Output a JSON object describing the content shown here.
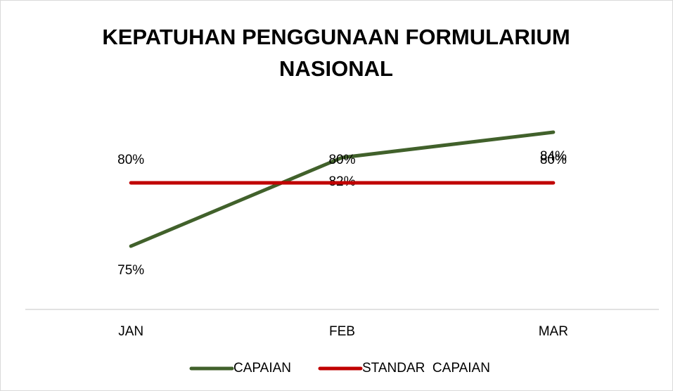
{
  "chart_data": {
    "type": "line",
    "title": "KEPATUHAN PENGGUNAAN FORMULARIUM NASIONAL",
    "categories": [
      "JAN",
      "FEB",
      "MAR"
    ],
    "ylim": [
      70,
      90
    ],
    "series": [
      {
        "name": "CAPAIAN",
        "color": "#41612b",
        "values": [
          75,
          82,
          84
        ],
        "value_labels": [
          "75%",
          "82%",
          "84%"
        ]
      },
      {
        "name": "STANDAR  CAPAIAN",
        "color": "#c00000",
        "values": [
          80,
          80,
          80
        ],
        "value_labels": [
          "80%",
          "80%",
          "80%"
        ]
      }
    ]
  }
}
